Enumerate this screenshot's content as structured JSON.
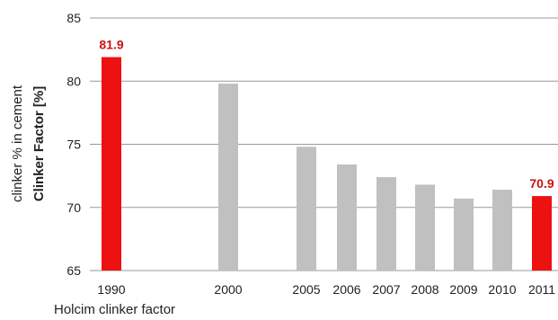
{
  "chart_data": {
    "type": "bar",
    "categories": [
      "1990",
      "2000",
      "2005",
      "2006",
      "2007",
      "2008",
      "2009",
      "2010",
      "2011"
    ],
    "values": [
      81.9,
      79.8,
      74.8,
      73.4,
      72.4,
      71.8,
      70.7,
      71.4,
      70.9
    ],
    "highlight": [
      true,
      false,
      false,
      false,
      false,
      false,
      false,
      false,
      true
    ],
    "data_labels": [
      "81.9",
      null,
      null,
      null,
      null,
      null,
      null,
      null,
      "70.9"
    ],
    "ylabel_line1": "clinker % in cement",
    "ylabel_line2": "Clinker Factor [%]",
    "ylim": [
      65,
      85
    ],
    "yticks": [
      65,
      70,
      75,
      80,
      85
    ],
    "grid": true,
    "caption": "Holcim clinker factor",
    "colors": {
      "highlight": "#ee1111",
      "normal": "#c0c0c0",
      "label": "#cc1111",
      "grid": "#999999"
    }
  }
}
